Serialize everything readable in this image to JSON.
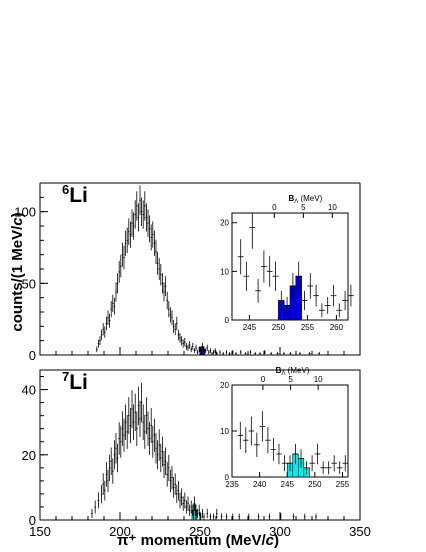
{
  "figure": {
    "y_axis_title": "counts/(1 MeV/",
    "y_axis_title_italic": "c",
    "y_axis_title_close": ")",
    "x_axis_title": "π⁺ momentum (MeV/",
    "x_axis_title_italic": "c",
    "x_axis_title_close": ")"
  },
  "chart_data": [
    {
      "type": "histogram",
      "panel": "top",
      "nucleus_mass": "6",
      "nucleus": "Li",
      "xlim": [
        150,
        350
      ],
      "ylim": [
        0,
        120
      ],
      "x_ticks": [
        150,
        200,
        250,
        300,
        350
      ],
      "y_ticks": [
        0,
        50,
        100
      ],
      "colors": {
        "highlight": "#0000ee",
        "marker": "#000000"
      },
      "highlight_bins": [
        [
          250,
          4
        ],
        [
          251,
          6
        ],
        [
          252,
          4
        ]
      ],
      "points": [
        [
          185,
          4
        ],
        [
          186,
          8
        ],
        [
          187,
          10
        ],
        [
          188,
          14
        ],
        [
          189,
          18
        ],
        [
          190,
          16
        ],
        [
          191,
          22
        ],
        [
          192,
          26
        ],
        [
          193,
          24
        ],
        [
          194,
          32
        ],
        [
          195,
          36
        ],
        [
          196,
          34
        ],
        [
          197,
          44
        ],
        [
          198,
          50
        ],
        [
          199,
          58
        ],
        [
          200,
          62
        ],
        [
          201,
          70
        ],
        [
          202,
          68
        ],
        [
          203,
          78
        ],
        [
          204,
          80
        ],
        [
          205,
          86
        ],
        [
          206,
          84
        ],
        [
          207,
          92
        ],
        [
          208,
          90
        ],
        [
          209,
          98
        ],
        [
          210,
          104
        ],
        [
          211,
          96
        ],
        [
          212,
          108
        ],
        [
          213,
          100
        ],
        [
          214,
          98
        ],
        [
          215,
          104
        ],
        [
          216,
          96
        ],
        [
          217,
          92
        ],
        [
          218,
          88
        ],
        [
          219,
          82
        ],
        [
          220,
          84
        ],
        [
          221,
          78
        ],
        [
          222,
          72
        ],
        [
          223,
          64
        ],
        [
          224,
          60
        ],
        [
          225,
          56
        ],
        [
          226,
          50
        ],
        [
          227,
          44
        ],
        [
          228,
          48
        ],
        [
          229,
          38
        ],
        [
          230,
          32
        ],
        [
          231,
          28
        ],
        [
          232,
          26
        ],
        [
          233,
          20
        ],
        [
          234,
          18
        ],
        [
          235,
          22
        ],
        [
          236,
          14
        ],
        [
          237,
          12
        ],
        [
          238,
          10
        ],
        [
          239,
          8
        ],
        [
          240,
          9
        ],
        [
          241,
          6
        ],
        [
          242,
          5
        ],
        [
          243,
          7
        ],
        [
          244,
          4
        ],
        [
          245,
          6
        ],
        [
          246,
          3
        ],
        [
          247,
          5
        ],
        [
          248,
          2
        ],
        [
          249,
          4
        ],
        [
          250,
          4
        ],
        [
          251,
          6
        ],
        [
          252,
          4
        ],
        [
          253,
          3
        ],
        [
          254,
          5
        ],
        [
          255,
          2
        ],
        [
          256,
          3
        ],
        [
          257,
          1
        ],
        [
          258,
          2
        ],
        [
          259,
          3
        ],
        [
          260,
          1
        ],
        [
          262,
          2
        ],
        [
          264,
          1
        ],
        [
          266,
          2
        ],
        [
          268,
          1
        ],
        [
          270,
          2
        ],
        [
          272,
          1
        ],
        [
          275,
          2
        ],
        [
          278,
          1
        ],
        [
          281,
          2
        ],
        [
          284,
          1
        ],
        [
          287,
          1
        ],
        [
          290,
          2
        ],
        [
          294,
          1
        ],
        [
          298,
          1
        ],
        [
          302,
          1
        ],
        [
          306,
          1
        ],
        [
          312,
          1
        ],
        [
          318,
          1
        ],
        [
          324,
          1
        ]
      ],
      "inset": {
        "xlim": [
          242,
          262
        ],
        "ylim": [
          0,
          22
        ],
        "x_ticks": [
          245,
          250,
          255,
          260
        ],
        "y_ticks": [
          0,
          10,
          20
        ],
        "top_axis_label": "B",
        "top_axis_subscript": "Λ",
        "top_axis_unit": " (MeV)",
        "top_ticks": [
          0,
          5,
          10
        ],
        "top_zero_at": 249.3,
        "highlight_bins": [
          [
            250,
            4
          ],
          [
            251,
            3
          ],
          [
            252,
            7
          ],
          [
            253,
            9
          ]
        ],
        "points": [
          [
            243,
            13
          ],
          [
            244,
            9
          ],
          [
            245,
            19
          ],
          [
            246,
            6
          ],
          [
            247,
            11
          ],
          [
            248,
            10
          ],
          [
            249,
            9
          ],
          [
            250,
            4
          ],
          [
            251,
            3
          ],
          [
            252,
            7
          ],
          [
            253,
            9
          ],
          [
            254,
            4
          ],
          [
            255,
            7
          ],
          [
            256,
            5
          ],
          [
            257,
            2
          ],
          [
            258,
            3
          ],
          [
            259,
            5
          ],
          [
            260,
            2
          ],
          [
            261,
            4
          ],
          [
            262,
            5
          ]
        ]
      }
    },
    {
      "type": "histogram",
      "panel": "bottom",
      "nucleus_mass": "7",
      "nucleus": "Li",
      "xlim": [
        150,
        350
      ],
      "ylim": [
        0,
        46
      ],
      "x_ticks": [
        150,
        200,
        250,
        300,
        350
      ],
      "x_tick_labels": [
        "150",
        "200",
        "250",
        "300",
        "350"
      ],
      "y_ticks": [
        0,
        20,
        40
      ],
      "colors": {
        "highlight": "#00eeee",
        "marker": "#000000"
      },
      "highlight_bins": [
        [
          245,
          3
        ],
        [
          246,
          5
        ],
        [
          247,
          3
        ]
      ],
      "points": [
        [
          182,
          2
        ],
        [
          184,
          4
        ],
        [
          186,
          6
        ],
        [
          188,
          8
        ],
        [
          189,
          11
        ],
        [
          190,
          9
        ],
        [
          191,
          14
        ],
        [
          192,
          12
        ],
        [
          193,
          16
        ],
        [
          194,
          18
        ],
        [
          195,
          15
        ],
        [
          196,
          20
        ],
        [
          197,
          22
        ],
        [
          198,
          19
        ],
        [
          199,
          25
        ],
        [
          200,
          24
        ],
        [
          201,
          28
        ],
        [
          202,
          26
        ],
        [
          203,
          30
        ],
        [
          204,
          27
        ],
        [
          205,
          32
        ],
        [
          206,
          29
        ],
        [
          207,
          34
        ],
        [
          208,
          30
        ],
        [
          209,
          33
        ],
        [
          210,
          28
        ],
        [
          211,
          35
        ],
        [
          212,
          31
        ],
        [
          213,
          36
        ],
        [
          214,
          30
        ],
        [
          215,
          27
        ],
        [
          216,
          32
        ],
        [
          217,
          28
        ],
        [
          218,
          25
        ],
        [
          219,
          29
        ],
        [
          220,
          24
        ],
        [
          221,
          26
        ],
        [
          222,
          22
        ],
        [
          223,
          20
        ],
        [
          224,
          23
        ],
        [
          225,
          19
        ],
        [
          226,
          21
        ],
        [
          227,
          17
        ],
        [
          228,
          18
        ],
        [
          229,
          14
        ],
        [
          230,
          16
        ],
        [
          231,
          12
        ],
        [
          232,
          13
        ],
        [
          233,
          10
        ],
        [
          234,
          11
        ],
        [
          235,
          8
        ],
        [
          236,
          9
        ],
        [
          237,
          6
        ],
        [
          238,
          7
        ],
        [
          239,
          5
        ],
        [
          240,
          6
        ],
        [
          241,
          4
        ],
        [
          242,
          5
        ],
        [
          243,
          3
        ],
        [
          244,
          4
        ],
        [
          245,
          3
        ],
        [
          246,
          5
        ],
        [
          247,
          3
        ],
        [
          248,
          2
        ],
        [
          249,
          3
        ],
        [
          250,
          1
        ],
        [
          251,
          2
        ],
        [
          252,
          1
        ],
        [
          254,
          2
        ],
        [
          256,
          1
        ],
        [
          258,
          1
        ],
        [
          260,
          2
        ],
        [
          263,
          1
        ],
        [
          266,
          1
        ],
        [
          270,
          1
        ],
        [
          274,
          1
        ],
        [
          280,
          1
        ],
        [
          286,
          1
        ],
        [
          293,
          1
        ],
        [
          300,
          1
        ],
        [
          308,
          1
        ],
        [
          315,
          1
        ],
        [
          322,
          1
        ]
      ],
      "inset": {
        "xlim": [
          235,
          256
        ],
        "ylim": [
          0,
          20
        ],
        "x_ticks": [
          235,
          240,
          245,
          250,
          255
        ],
        "y_ticks": [
          0,
          10,
          20
        ],
        "top_axis_label": "B",
        "top_axis_subscript": "Λ",
        "top_axis_unit": " (MeV)",
        "top_ticks": [
          0,
          5,
          10
        ],
        "top_zero_at": 240.6,
        "highlight_bins": [
          [
            245,
            3
          ],
          [
            246,
            5
          ],
          [
            247,
            4
          ],
          [
            248,
            2
          ]
        ],
        "points": [
          [
            236,
            9
          ],
          [
            237,
            8
          ],
          [
            238,
            10
          ],
          [
            239,
            7
          ],
          [
            240,
            11
          ],
          [
            241,
            8
          ],
          [
            242,
            6
          ],
          [
            243,
            5
          ],
          [
            244,
            3
          ],
          [
            245,
            3
          ],
          [
            246,
            5
          ],
          [
            247,
            4
          ],
          [
            248,
            2
          ],
          [
            249,
            3
          ],
          [
            250,
            5
          ],
          [
            251,
            2
          ],
          [
            252,
            2
          ],
          [
            253,
            3
          ],
          [
            254,
            2
          ],
          [
            255,
            3
          ]
        ]
      }
    }
  ]
}
